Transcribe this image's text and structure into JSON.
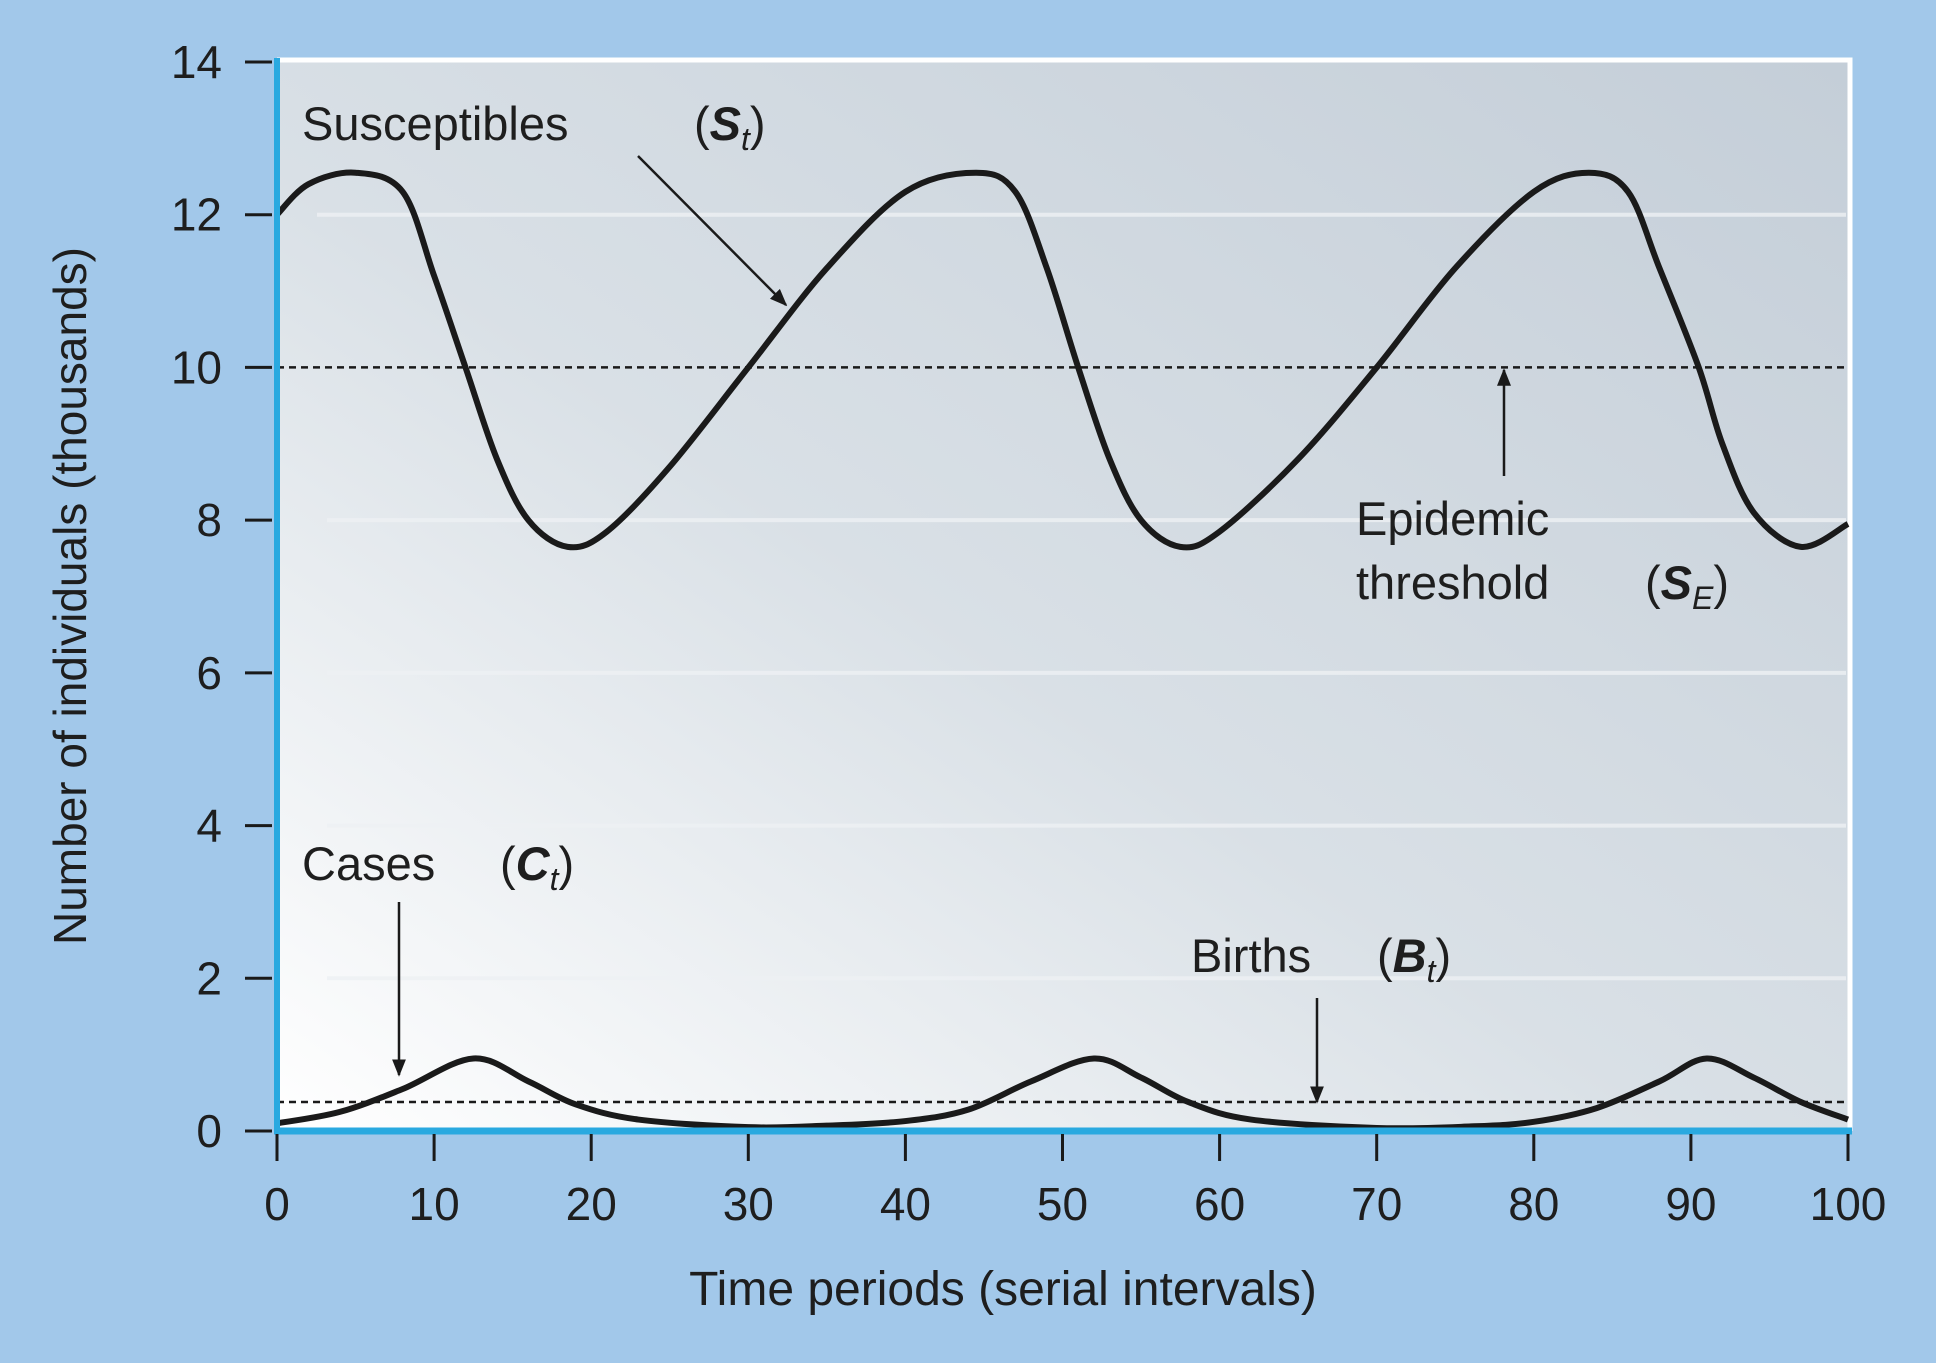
{
  "chart_data": {
    "type": "line",
    "xlabel": "Time periods (serial intervals)",
    "ylabel": "Number of individuals (thousands)",
    "xlim": [
      0,
      100
    ],
    "ylim": [
      0,
      14
    ],
    "xticks": [
      "0",
      "10",
      "20",
      "30",
      "40",
      "50",
      "60",
      "70",
      "80",
      "90",
      "100"
    ],
    "yticks": [
      "0",
      "2",
      "4",
      "6",
      "8",
      "10",
      "12",
      "14"
    ],
    "grid": true,
    "colors": {
      "background": "#a2c8ea",
      "axis": "#29a9e0",
      "line": "#1a1a1a",
      "plot_top": "#c6d0d9",
      "plot_bottom": "#ffffff"
    },
    "series": [
      {
        "name": "Susceptibles",
        "symbol": "S",
        "subscript": "t",
        "style": "solid",
        "x": [
          0,
          2,
          5,
          8,
          10,
          12,
          14,
          16,
          18.5,
          21,
          25,
          30,
          35,
          40,
          44.5,
          47,
          49,
          51,
          53,
          55,
          57.5,
          60,
          65,
          70,
          75,
          80,
          83.5,
          86,
          88,
          90.5,
          92,
          94,
          97,
          100
        ],
        "y": [
          12.0,
          12.4,
          12.55,
          12.3,
          11.2,
          10.0,
          8.8,
          8.0,
          7.65,
          7.85,
          8.7,
          10.0,
          11.3,
          12.3,
          12.55,
          12.3,
          11.3,
          10.0,
          8.8,
          8.0,
          7.65,
          7.85,
          8.8,
          10.0,
          11.3,
          12.3,
          12.55,
          12.3,
          11.3,
          10.0,
          9.0,
          8.1,
          7.65,
          7.95
        ]
      },
      {
        "name": "Cases",
        "symbol": "C",
        "subscript": "t",
        "style": "solid",
        "x": [
          0,
          4,
          8,
          12.5,
          16,
          19,
          23,
          30,
          35,
          40,
          44,
          48,
          52,
          55,
          58,
          62,
          70,
          76,
          80,
          84,
          88,
          91,
          94,
          97,
          100
        ],
        "y": [
          0.1,
          0.25,
          0.55,
          0.95,
          0.65,
          0.35,
          0.15,
          0.05,
          0.07,
          0.13,
          0.28,
          0.65,
          0.95,
          0.7,
          0.38,
          0.15,
          0.04,
          0.06,
          0.12,
          0.3,
          0.65,
          0.95,
          0.7,
          0.38,
          0.15
        ]
      },
      {
        "name": "Epidemic threshold",
        "symbol": "S",
        "subscript": "E",
        "style": "dashed",
        "x": [
          0,
          100
        ],
        "y": [
          10,
          10
        ]
      },
      {
        "name": "Births",
        "symbol": "B",
        "subscript": "t",
        "style": "dashed",
        "x": [
          0,
          100
        ],
        "y": [
          0.38,
          0.38
        ]
      }
    ],
    "annotations": {
      "susceptibles": {
        "text": "Susceptibles",
        "symbol": "S",
        "subscript": "t"
      },
      "threshold": {
        "line1": "Epidemic",
        "line2": "threshold",
        "symbol": "S",
        "subscript": "E"
      },
      "cases": {
        "text": "Cases",
        "symbol": "C",
        "subscript": "t"
      },
      "births": {
        "text": "Births",
        "symbol": "B",
        "subscript": "t"
      }
    }
  }
}
